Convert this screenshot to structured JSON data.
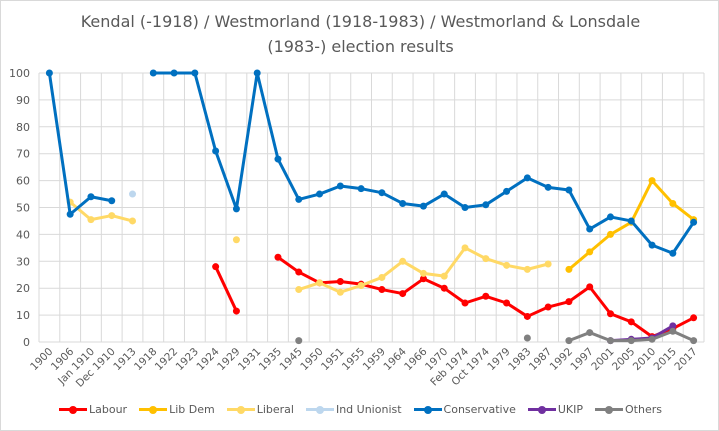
{
  "chart_data": {
    "type": "line",
    "title": "Kendal (-1918) / Westmorland (1918-1983) / Westmorland & Lonsdale (1983-) election results",
    "title_lines": [
      "Kendal (-1918) / Westmorland (1918-1983) / Westmorland & Lonsdale",
      "(1983-) election results"
    ],
    "xlabel": "",
    "ylabel": "",
    "ylim": [
      0,
      100
    ],
    "yticks": [
      0,
      10,
      20,
      30,
      40,
      50,
      60,
      70,
      80,
      90,
      100
    ],
    "grid": true,
    "legend": "bottom",
    "categories": [
      "1900",
      "1906",
      "Jan 1910",
      "Dec 1910",
      "1913",
      "1918",
      "1922",
      "1923",
      "1924",
      "1929",
      "1931",
      "1935",
      "1945",
      "1950",
      "1951",
      "1955",
      "1959",
      "1964",
      "1966",
      "1970",
      "Feb 1974",
      "Oct 1974",
      "1979",
      "1983",
      "1987",
      "1992",
      "1997",
      "2001",
      "2005",
      "2010",
      "2015",
      "2017"
    ],
    "series": [
      {
        "name": "Labour",
        "color": "#ff0000",
        "values": [
          null,
          null,
          null,
          null,
          null,
          null,
          null,
          null,
          28,
          11.5,
          null,
          31.5,
          26,
          22,
          22.5,
          21.5,
          19.5,
          18,
          23.5,
          20,
          14.5,
          17,
          14.5,
          9.5,
          13,
          15,
          20.5,
          10.5,
          7.5,
          2,
          5,
          9
        ]
      },
      {
        "name": "Lib Dem",
        "color": "#ffc000",
        "values": [
          null,
          null,
          null,
          null,
          null,
          null,
          null,
          null,
          null,
          null,
          null,
          null,
          null,
          null,
          null,
          null,
          null,
          null,
          null,
          null,
          null,
          null,
          null,
          null,
          null,
          27,
          33.5,
          40,
          44.5,
          60,
          51.5,
          45.5
        ]
      },
      {
        "name": "Liberal",
        "color": "#ffd966",
        "values": [
          null,
          52,
          45.5,
          47,
          45,
          null,
          null,
          null,
          null,
          38,
          null,
          null,
          19.5,
          22,
          18.5,
          21,
          24,
          30,
          25.5,
          24.5,
          35,
          31,
          28.5,
          27,
          29,
          null,
          null,
          null,
          null,
          null,
          null,
          null
        ]
      },
      {
        "name": "Ind Unionist",
        "color": "#bdd7ee",
        "values": [
          null,
          null,
          null,
          null,
          55,
          null,
          null,
          null,
          null,
          null,
          null,
          null,
          null,
          null,
          null,
          null,
          null,
          null,
          null,
          null,
          null,
          null,
          null,
          null,
          null,
          null,
          null,
          null,
          null,
          null,
          null,
          null
        ]
      },
      {
        "name": "Conservative",
        "color": "#0070c0",
        "values": [
          100,
          47.5,
          54,
          52.5,
          null,
          100,
          100,
          100,
          71,
          49.5,
          100,
          68,
          53,
          55,
          58,
          57,
          55.5,
          51.5,
          50.5,
          55,
          50,
          51,
          56,
          61,
          57.5,
          56.5,
          42,
          46.5,
          45,
          36,
          33,
          44.5
        ]
      },
      {
        "name": "UKIP",
        "color": "#7030a0",
        "values": [
          null,
          null,
          null,
          null,
          null,
          null,
          null,
          null,
          null,
          null,
          null,
          null,
          null,
          null,
          null,
          null,
          null,
          null,
          null,
          null,
          null,
          null,
          null,
          null,
          null,
          null,
          null,
          0.5,
          1,
          1.5,
          6,
          null
        ]
      },
      {
        "name": "Others",
        "color": "#808080",
        "values": [
          null,
          null,
          null,
          null,
          null,
          null,
          null,
          null,
          null,
          null,
          null,
          null,
          0.5,
          null,
          null,
          null,
          null,
          null,
          null,
          null,
          null,
          null,
          null,
          1.5,
          null,
          0.5,
          3.5,
          0.5,
          0.5,
          1,
          4,
          0.5
        ]
      }
    ]
  }
}
